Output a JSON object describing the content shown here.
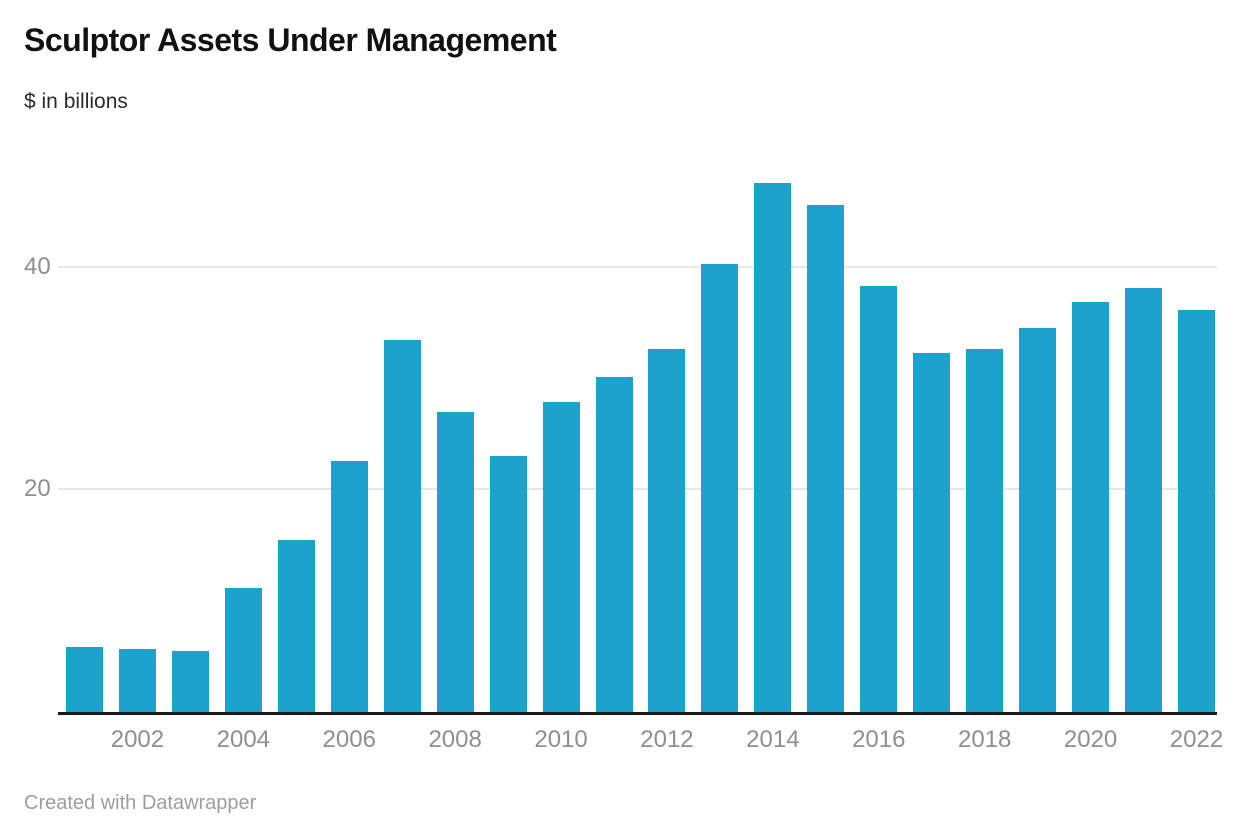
{
  "header": {
    "title": "Sculptor Assets Under Management",
    "subtitle": "$ in billions"
  },
  "footer": {
    "credit": "Created with Datawrapper"
  },
  "colors": {
    "bar": "#1ba3cc",
    "axis": "#1a1a1a",
    "grid": "#e7e7e7",
    "tick": "#8f8f8f",
    "credit": "#9d9d9d",
    "title": "#111111",
    "subtitle": "#2b2b2b"
  },
  "chart_data": {
    "type": "bar",
    "title": "Sculptor Assets Under Management",
    "subtitle": "$ in billions",
    "unit": "USD billions",
    "categories": [
      "2001",
      "2002",
      "2003",
      "2004",
      "2005",
      "2006",
      "2007",
      "2008",
      "2009",
      "2010",
      "2011",
      "2012",
      "2013",
      "2014",
      "2015",
      "2016",
      "2017",
      "2018",
      "2019",
      "2020",
      "2021",
      "2022"
    ],
    "values": [
      5.8,
      5.7,
      5.5,
      11.1,
      15.5,
      22.6,
      33.4,
      27.0,
      23.0,
      27.9,
      30.1,
      32.6,
      40.3,
      47.5,
      45.6,
      38.3,
      32.3,
      32.6,
      34.5,
      36.8,
      38.1,
      36.1
    ],
    "ylim": [
      0,
      50
    ],
    "y_ticks": [
      20,
      40
    ],
    "x_tick_labels": [
      "2002",
      "2004",
      "2006",
      "2008",
      "2010",
      "2012",
      "2014",
      "2016",
      "2018",
      "2020",
      "2022"
    ],
    "grid": "horizontal-only",
    "legend": "none",
    "bar_color": "#1ba3cc"
  }
}
